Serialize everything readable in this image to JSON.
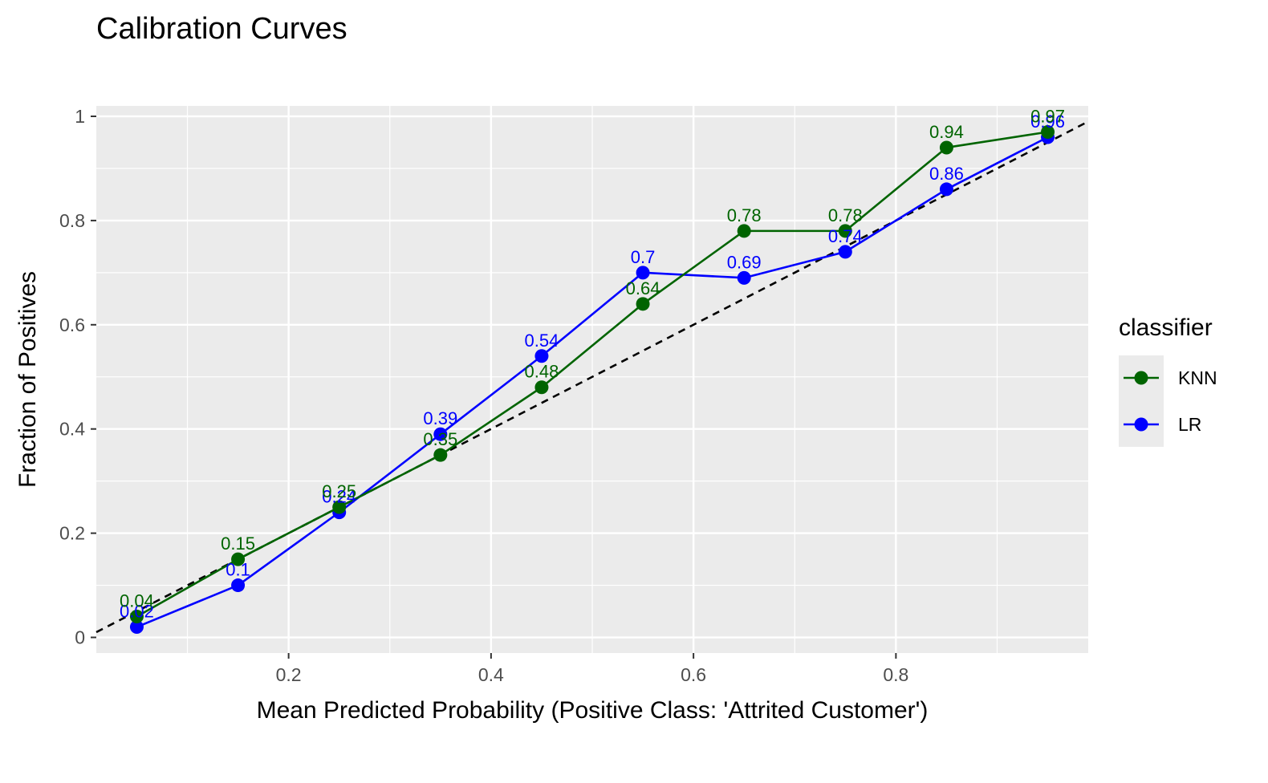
{
  "chart_data": {
    "type": "line",
    "title": "Calibration Curves",
    "xlabel": "Mean Predicted Probability (Positive Class: 'Attrited Customer')",
    "ylabel": "Fraction of Positives",
    "xlim": [
      0.01,
      0.99
    ],
    "ylim": [
      -0.03,
      1.02
    ],
    "x_ticks": [
      0.2,
      0.4,
      0.6,
      0.8
    ],
    "x_tick_labels": [
      "0.2",
      "0.4",
      "0.6",
      "0.8"
    ],
    "y_ticks": [
      0,
      0.2,
      0.4,
      0.6,
      0.8,
      1
    ],
    "y_tick_labels": [
      "0",
      "0.2",
      "0.4",
      "0.6",
      "0.8",
      "1"
    ],
    "grid": true,
    "reference_line": {
      "style": "dashed",
      "color": "#000000",
      "from": [
        0,
        0
      ],
      "to": [
        1,
        1
      ]
    },
    "legend": {
      "title": "classifier",
      "position": "right"
    },
    "series": [
      {
        "name": "KNN",
        "color": "#006400",
        "x": [
          0.05,
          0.15,
          0.25,
          0.35,
          0.45,
          0.55,
          0.65,
          0.75,
          0.85,
          0.95
        ],
        "y": [
          0.04,
          0.15,
          0.25,
          0.35,
          0.48,
          0.64,
          0.78,
          0.78,
          0.94,
          0.97
        ],
        "labels": [
          "0.04",
          "0.15",
          "0.25",
          "0.35",
          "0.48",
          "0.64",
          "0.78",
          "0.78",
          "0.94",
          "0.97"
        ]
      },
      {
        "name": "LR",
        "color": "#0000ff",
        "x": [
          0.05,
          0.15,
          0.25,
          0.35,
          0.45,
          0.55,
          0.65,
          0.75,
          0.85,
          0.95
        ],
        "y": [
          0.02,
          0.1,
          0.24,
          0.39,
          0.54,
          0.7,
          0.69,
          0.74,
          0.86,
          0.96
        ],
        "labels": [
          "0.02",
          "0.1",
          "0.24",
          "0.39",
          "0.54",
          "0.7",
          "0.69",
          "0.74",
          "0.86",
          "0.96"
        ]
      }
    ]
  }
}
